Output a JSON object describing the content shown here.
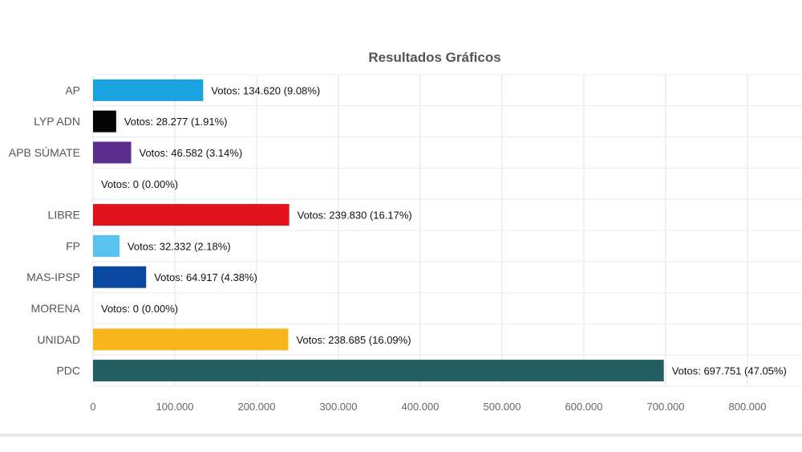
{
  "chart_data": {
    "type": "bar",
    "orientation": "horizontal",
    "title": "Resultados Gráficos",
    "xlabel": "",
    "ylabel": "",
    "xlim": [
      0,
      800000
    ],
    "x_ticks": [
      0,
      100000,
      200000,
      300000,
      400000,
      500000,
      600000,
      700000,
      800000
    ],
    "x_tick_labels": [
      "0",
      "100.000",
      "200.000",
      "300.000",
      "400.000",
      "500.000",
      "600.000",
      "700.000",
      "800.000"
    ],
    "grid": true,
    "categories": [
      "AP",
      "LYP ADN",
      "APB SÚMATE",
      "",
      "LIBRE",
      "FP",
      "MAS-IPSP",
      "MORENA",
      "UNIDAD",
      "PDC"
    ],
    "values": [
      134620,
      28277,
      46582,
      0,
      239830,
      32332,
      64917,
      0,
      238685,
      697751
    ],
    "data_labels": [
      "Votos: 134.620 (9.08%)",
      "Votos: 28.277 (1.91%)",
      "Votos: 46.582 (3.14%)",
      "Votos: 0 (0.00%)",
      "Votos: 239.830 (16.17%)",
      "Votos: 32.332 (2.18%)",
      "Votos: 64.917 (4.38%)",
      "Votos: 0 (0.00%)",
      "Votos: 238.685 (16.09%)",
      "Votos: 697.751 (47.05%)"
    ],
    "colors": [
      "#1aa3e0",
      "#050505",
      "#5b2d8c",
      "#ffffff",
      "#e0121c",
      "#58c3ee",
      "#0a47a0",
      "#ffffff",
      "#f8b61c",
      "#235f62"
    ]
  }
}
